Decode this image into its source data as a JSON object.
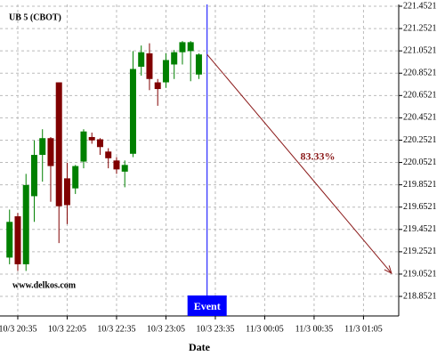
{
  "chart_data": {
    "type": "candlestick",
    "title": "UB 5 (CBOT)",
    "watermark": "www.delkos.com",
    "x_label": "Date",
    "x": [
      1290,
      1295,
      1300,
      1305,
      1310,
      1315,
      1320,
      1325,
      1330,
      1335,
      1340,
      1345,
      1350,
      1355,
      1360,
      1365,
      1370,
      1375,
      1380,
      1385,
      1390,
      1395,
      1400,
      1405
    ],
    "open": [
      219.2,
      219.57,
      219.14,
      219.75,
      220.12,
      220.27,
      220.77,
      219.91,
      219.82,
      220.06,
      220.28,
      220.26,
      220.15,
      220.07,
      219.97,
      220.13,
      220.91,
      221.03,
      220.77,
      220.77,
      220.93,
      221.04,
      221.05,
      220.84
    ],
    "high": [
      219.63,
      219.6,
      219.95,
      220.25,
      220.35,
      220.28,
      220.77,
      220.05,
      220.03,
      220.35,
      220.32,
      220.27,
      220.18,
      220.1,
      220.07,
      221.05,
      221.1,
      221.12,
      220.8,
      221.03,
      221.06,
      221.14,
      221.14,
      221.03
    ],
    "low": [
      219.14,
      219.08,
      219.08,
      219.52,
      219.88,
      219.7,
      219.33,
      219.5,
      219.77,
      220.0,
      220.22,
      220.12,
      220.0,
      219.95,
      219.83,
      220.1,
      220.83,
      220.7,
      220.56,
      220.72,
      220.8,
      220.93,
      220.78,
      220.8
    ],
    "close": [
      219.52,
      219.14,
      219.85,
      220.12,
      220.27,
      220.02,
      219.66,
      219.67,
      220.02,
      220.33,
      220.25,
      220.19,
      220.09,
      219.99,
      220.03,
      220.89,
      221.04,
      220.8,
      220.71,
      220.97,
      221.04,
      221.13,
      221.13,
      221.02
    ],
    "up_color": "#008000",
    "down_color": "#800000",
    "xlim": [
      1284.2,
      1526.4
    ],
    "xticks": [
      {
        "value": 1295,
        "label": "10/3 20:35"
      },
      {
        "value": 1325,
        "label": "10/3 22:05"
      },
      {
        "value": 1355,
        "label": "10/3 22:35"
      },
      {
        "value": 1385,
        "label": "10/3 23:05"
      },
      {
        "value": 1415,
        "label": "10/3 23:35"
      },
      {
        "value": 1445,
        "label": "11/3 00:05"
      },
      {
        "value": 1475,
        "label": "11/3 00:35"
      },
      {
        "value": 1505,
        "label": "11/3 01:05"
      }
    ],
    "ylim": [
      218.677,
      221.468
    ],
    "yticks": [
      221.4521,
      221.2521,
      221.0521,
      220.8521,
      220.6521,
      220.4521,
      220.2521,
      220.0521,
      219.8521,
      219.6521,
      219.4521,
      219.2521,
      219.0521,
      218.8521
    ],
    "grid": true,
    "event": {
      "x": 1410,
      "label": "Event",
      "color": "#0000ff"
    },
    "arrow": {
      "x": [
        1410,
        1522
      ],
      "y": [
        221.02,
        219.06
      ],
      "label": "83.33%",
      "color": "#8b1a1a"
    }
  }
}
